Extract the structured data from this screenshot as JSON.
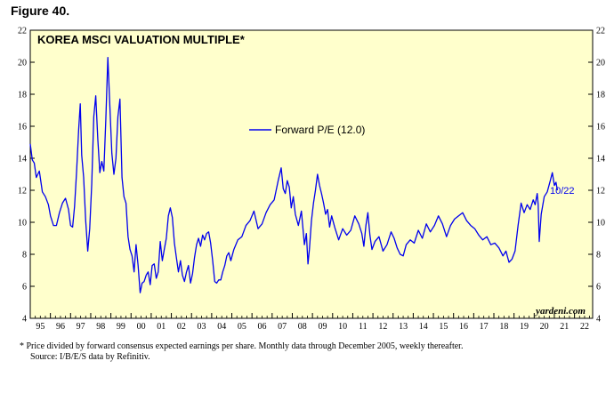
{
  "figure_label": "Figure 40.",
  "chart_data": {
    "type": "line",
    "title": "KOREA MSCI VALUATION MULTIPLE*",
    "xlabel": "",
    "ylabel": "",
    "ylim": [
      4,
      22
    ],
    "yticks": [
      4,
      6,
      8,
      10,
      12,
      14,
      16,
      18,
      20,
      22
    ],
    "xlim": [
      1995.0,
      2022.9
    ],
    "xtick_labels": [
      "95",
      "96",
      "97",
      "98",
      "99",
      "00",
      "01",
      "02",
      "03",
      "04",
      "05",
      "06",
      "07",
      "08",
      "09",
      "10",
      "11",
      "12",
      "13",
      "14",
      "15",
      "16",
      "17",
      "18",
      "19",
      "20",
      "21",
      "22"
    ],
    "series": [
      {
        "name": "Forward P/E (12.0)",
        "color": "#0000ee",
        "points": [
          [
            1995.0,
            14.9
          ],
          [
            1995.1,
            13.9
          ],
          [
            1995.2,
            13.7
          ],
          [
            1995.3,
            12.8
          ],
          [
            1995.45,
            13.2
          ],
          [
            1995.6,
            11.9
          ],
          [
            1995.75,
            11.6
          ],
          [
            1995.9,
            11.1
          ],
          [
            1996.0,
            10.4
          ],
          [
            1996.15,
            9.8
          ],
          [
            1996.3,
            9.8
          ],
          [
            1996.45,
            10.6
          ],
          [
            1996.6,
            11.2
          ],
          [
            1996.75,
            11.5
          ],
          [
            1996.9,
            10.8
          ],
          [
            1997.0,
            9.8
          ],
          [
            1997.1,
            9.7
          ],
          [
            1997.2,
            11.0
          ],
          [
            1997.3,
            13.2
          ],
          [
            1997.4,
            15.8
          ],
          [
            1997.48,
            17.4
          ],
          [
            1997.55,
            14.2
          ],
          [
            1997.65,
            12.8
          ],
          [
            1997.75,
            10.1
          ],
          [
            1997.85,
            8.2
          ],
          [
            1997.95,
            9.6
          ],
          [
            1998.05,
            12.4
          ],
          [
            1998.15,
            16.6
          ],
          [
            1998.25,
            17.9
          ],
          [
            1998.35,
            15.2
          ],
          [
            1998.45,
            13.1
          ],
          [
            1998.55,
            13.8
          ],
          [
            1998.65,
            13.2
          ],
          [
            1998.75,
            16.4
          ],
          [
            1998.85,
            20.3
          ],
          [
            1998.95,
            17.2
          ],
          [
            1999.05,
            14.3
          ],
          [
            1999.15,
            13.0
          ],
          [
            1999.25,
            14.0
          ],
          [
            1999.35,
            16.6
          ],
          [
            1999.45,
            17.7
          ],
          [
            1999.55,
            12.8
          ],
          [
            1999.65,
            11.6
          ],
          [
            1999.75,
            11.2
          ],
          [
            1999.85,
            9.1
          ],
          [
            1999.95,
            8.3
          ],
          [
            2000.05,
            7.9
          ],
          [
            2000.15,
            6.9
          ],
          [
            2000.25,
            8.6
          ],
          [
            2000.35,
            7.3
          ],
          [
            2000.45,
            5.6
          ],
          [
            2000.55,
            6.2
          ],
          [
            2000.65,
            6.3
          ],
          [
            2000.75,
            6.7
          ],
          [
            2000.85,
            6.9
          ],
          [
            2000.95,
            6.1
          ],
          [
            2001.05,
            7.3
          ],
          [
            2001.15,
            7.4
          ],
          [
            2001.25,
            6.5
          ],
          [
            2001.35,
            6.9
          ],
          [
            2001.45,
            8.8
          ],
          [
            2001.55,
            7.6
          ],
          [
            2001.65,
            8.3
          ],
          [
            2001.75,
            9.0
          ],
          [
            2001.85,
            10.4
          ],
          [
            2001.95,
            10.9
          ],
          [
            2002.05,
            10.3
          ],
          [
            2002.15,
            8.7
          ],
          [
            2002.25,
            7.8
          ],
          [
            2002.35,
            6.9
          ],
          [
            2002.45,
            7.6
          ],
          [
            2002.55,
            6.7
          ],
          [
            2002.65,
            6.3
          ],
          [
            2002.75,
            6.9
          ],
          [
            2002.85,
            7.3
          ],
          [
            2002.95,
            6.2
          ],
          [
            2003.05,
            6.8
          ],
          [
            2003.15,
            7.8
          ],
          [
            2003.25,
            8.6
          ],
          [
            2003.35,
            9.0
          ],
          [
            2003.45,
            8.5
          ],
          [
            2003.55,
            9.2
          ],
          [
            2003.65,
            8.9
          ],
          [
            2003.75,
            9.3
          ],
          [
            2003.85,
            9.4
          ],
          [
            2003.95,
            8.7
          ],
          [
            2004.05,
            7.6
          ],
          [
            2004.15,
            6.3
          ],
          [
            2004.25,
            6.2
          ],
          [
            2004.35,
            6.4
          ],
          [
            2004.45,
            6.4
          ],
          [
            2004.55,
            6.9
          ],
          [
            2004.65,
            7.3
          ],
          [
            2004.75,
            7.9
          ],
          [
            2004.85,
            8.1
          ],
          [
            2004.95,
            7.6
          ],
          [
            2005.1,
            8.3
          ],
          [
            2005.3,
            8.9
          ],
          [
            2005.5,
            9.1
          ],
          [
            2005.7,
            9.8
          ],
          [
            2005.9,
            10.1
          ],
          [
            2006.1,
            10.7
          ],
          [
            2006.3,
            9.6
          ],
          [
            2006.5,
            9.9
          ],
          [
            2006.7,
            10.6
          ],
          [
            2006.9,
            11.1
          ],
          [
            2007.1,
            11.4
          ],
          [
            2007.3,
            12.6
          ],
          [
            2007.45,
            13.4
          ],
          [
            2007.55,
            12.1
          ],
          [
            2007.65,
            11.8
          ],
          [
            2007.75,
            12.6
          ],
          [
            2007.85,
            12.2
          ],
          [
            2007.95,
            10.9
          ],
          [
            2008.05,
            11.6
          ],
          [
            2008.15,
            10.5
          ],
          [
            2008.3,
            9.8
          ],
          [
            2008.45,
            10.7
          ],
          [
            2008.6,
            8.6
          ],
          [
            2008.7,
            9.3
          ],
          [
            2008.78,
            7.4
          ],
          [
            2008.85,
            8.3
          ],
          [
            2008.95,
            10.1
          ],
          [
            2009.05,
            11.2
          ],
          [
            2009.15,
            12.0
          ],
          [
            2009.25,
            13.0
          ],
          [
            2009.35,
            12.3
          ],
          [
            2009.45,
            11.8
          ],
          [
            2009.55,
            11.2
          ],
          [
            2009.65,
            10.5
          ],
          [
            2009.75,
            10.8
          ],
          [
            2009.85,
            9.7
          ],
          [
            2009.95,
            10.4
          ],
          [
            2010.1,
            9.7
          ],
          [
            2010.3,
            8.9
          ],
          [
            2010.5,
            9.6
          ],
          [
            2010.7,
            9.2
          ],
          [
            2010.9,
            9.5
          ],
          [
            2011.1,
            10.4
          ],
          [
            2011.3,
            9.9
          ],
          [
            2011.45,
            9.3
          ],
          [
            2011.55,
            8.5
          ],
          [
            2011.65,
            9.8
          ],
          [
            2011.75,
            10.6
          ],
          [
            2011.85,
            9.2
          ],
          [
            2011.95,
            8.3
          ],
          [
            2012.1,
            8.8
          ],
          [
            2012.3,
            9.1
          ],
          [
            2012.5,
            8.2
          ],
          [
            2012.7,
            8.6
          ],
          [
            2012.9,
            9.4
          ],
          [
            2013.05,
            9.0
          ],
          [
            2013.2,
            8.4
          ],
          [
            2013.35,
            8.0
          ],
          [
            2013.5,
            7.9
          ],
          [
            2013.65,
            8.6
          ],
          [
            2013.85,
            8.9
          ],
          [
            2014.05,
            8.7
          ],
          [
            2014.25,
            9.5
          ],
          [
            2014.45,
            9.0
          ],
          [
            2014.65,
            9.9
          ],
          [
            2014.85,
            9.4
          ],
          [
            2015.05,
            9.8
          ],
          [
            2015.25,
            10.4
          ],
          [
            2015.45,
            9.9
          ],
          [
            2015.65,
            9.1
          ],
          [
            2015.85,
            9.8
          ],
          [
            2016.05,
            10.2
          ],
          [
            2016.25,
            10.4
          ],
          [
            2016.45,
            10.6
          ],
          [
            2016.65,
            10.1
          ],
          [
            2016.85,
            9.8
          ],
          [
            2017.05,
            9.6
          ],
          [
            2017.25,
            9.2
          ],
          [
            2017.45,
            8.9
          ],
          [
            2017.65,
            9.1
          ],
          [
            2017.85,
            8.6
          ],
          [
            2018.05,
            8.7
          ],
          [
            2018.25,
            8.4
          ],
          [
            2018.45,
            7.9
          ],
          [
            2018.6,
            8.2
          ],
          [
            2018.75,
            7.5
          ],
          [
            2018.9,
            7.7
          ],
          [
            2019.05,
            8.2
          ],
          [
            2019.2,
            9.8
          ],
          [
            2019.35,
            11.2
          ],
          [
            2019.5,
            10.6
          ],
          [
            2019.65,
            11.1
          ],
          [
            2019.8,
            10.8
          ],
          [
            2019.95,
            11.4
          ],
          [
            2020.05,
            11.1
          ],
          [
            2020.15,
            11.8
          ],
          [
            2020.2,
            11.1
          ],
          [
            2020.25,
            8.8
          ],
          [
            2020.35,
            10.5
          ],
          [
            2020.5,
            11.6
          ],
          [
            2020.65,
            11.9
          ],
          [
            2020.8,
            12.6
          ],
          [
            2020.9,
            13.1
          ],
          [
            2021.0,
            12.3
          ],
          [
            2021.08,
            12.5
          ],
          [
            2021.15,
            12.0
          ]
        ]
      }
    ],
    "legend": {
      "label": "Forward P/E (12.0)",
      "placement": "top-center"
    },
    "annotation": "10/22",
    "watermark": "yardeni.com",
    "background_color": "#ffffcc",
    "line_color": "#0000ee"
  },
  "footnote": {
    "line1": "*   Price divided by forward consensus expected earnings per share. Monthly data through December 2005, weekly thereafter.",
    "line2": "Source: I/B/E/S data by Refinitiv."
  }
}
